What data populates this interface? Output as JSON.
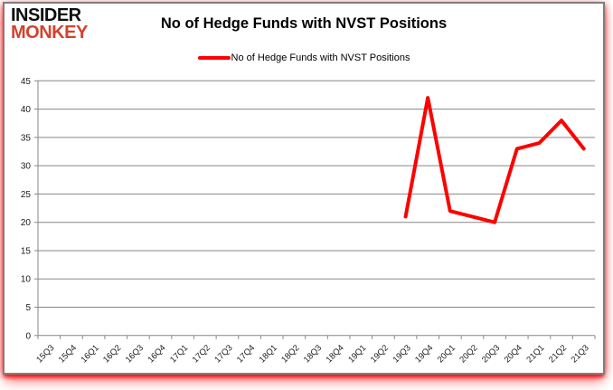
{
  "logo": {
    "line1": "INSIDER",
    "line2": "MONKEY"
  },
  "header": {
    "title": "No of Hedge Funds with NVST Positions"
  },
  "legend": {
    "label": "No of Hedge Funds with NVST Positions"
  },
  "colors": {
    "line": "#fe0000",
    "grid": "#878787",
    "axis_text": "#1a1a1a",
    "card_border": "#7e7e7e",
    "logo_black": "#0d0d0d",
    "logo_red": "#d2422e"
  },
  "chart_data": {
    "type": "line",
    "title": "No of Hedge Funds with NVST Positions",
    "xlabel": "",
    "ylabel": "",
    "categories": [
      "15Q3",
      "15Q4",
      "16Q1",
      "16Q2",
      "16Q3",
      "16Q4",
      "17Q1",
      "17Q2",
      "17Q3",
      "17Q4",
      "18Q1",
      "18Q2",
      "18Q3",
      "18Q4",
      "19Q1",
      "19Q2",
      "19Q3",
      "19Q4",
      "20Q1",
      "20Q2",
      "20Q3",
      "20Q4",
      "21Q1",
      "21Q2",
      "21Q3"
    ],
    "series": [
      {
        "name": "No of Hedge Funds with NVST Positions",
        "color": "#fe0000",
        "values": [
          null,
          null,
          null,
          null,
          null,
          null,
          null,
          null,
          null,
          null,
          null,
          null,
          null,
          null,
          null,
          null,
          21,
          42,
          22,
          21,
          20,
          33,
          34,
          38,
          33
        ]
      }
    ],
    "ylim": [
      0,
      45
    ],
    "ytick_step": 5,
    "grid": "horizontal",
    "legend_position": "top"
  }
}
